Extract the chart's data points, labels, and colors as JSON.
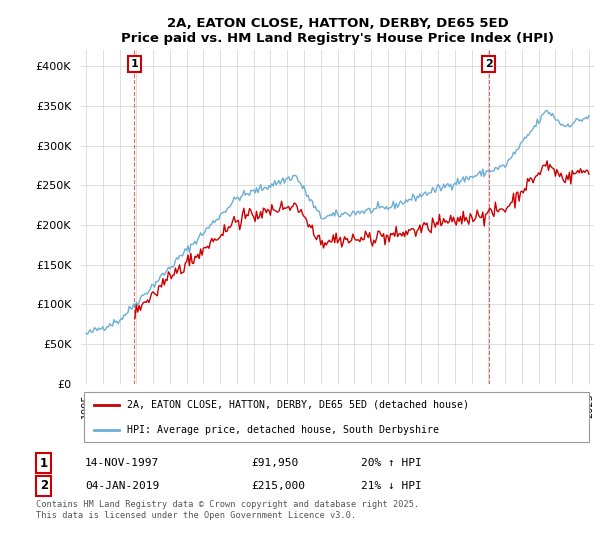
{
  "title": "2A, EATON CLOSE, HATTON, DERBY, DE65 5ED",
  "subtitle": "Price paid vs. HM Land Registry's House Price Index (HPI)",
  "legend_line1": "2A, EATON CLOSE, HATTON, DERBY, DE65 5ED (detached house)",
  "legend_line2": "HPI: Average price, detached house, South Derbyshire",
  "annotation1_date": "14-NOV-1997",
  "annotation1_price": "£91,950",
  "annotation1_hpi": "20% ↑ HPI",
  "annotation2_date": "04-JAN-2019",
  "annotation2_price": "£215,000",
  "annotation2_hpi": "21% ↓ HPI",
  "footer": "Contains HM Land Registry data © Crown copyright and database right 2025.\nThis data is licensed under the Open Government Licence v3.0.",
  "hpi_color": "#6baed6",
  "price_color": "#cc0000",
  "vline_color": "#cc0000",
  "annotation_box_color": "#cc0000",
  "ylim": [
    0,
    420000
  ],
  "yticks": [
    0,
    50000,
    100000,
    150000,
    200000,
    250000,
    300000,
    350000,
    400000
  ],
  "start_year": 1995,
  "end_year": 2025,
  "sale1_year": 1997.875,
  "sale1_price": 91950,
  "sale2_year": 2019.017,
  "sale2_price": 215000,
  "background_color": "#ffffff",
  "grid_color": "#cccccc"
}
